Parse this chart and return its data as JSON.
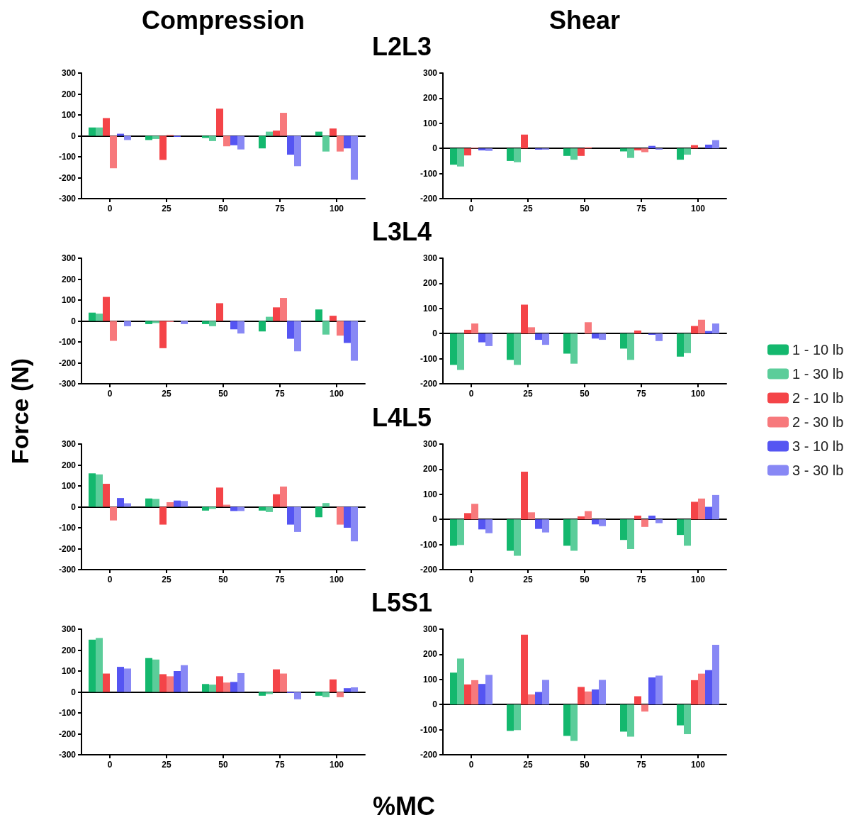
{
  "chart_data": [
    {
      "type": "bar",
      "title": "Compression",
      "subtitle": "L2L3",
      "categories": [
        "0",
        "25",
        "50",
        "75",
        "100"
      ],
      "ylim": [
        -300,
        300
      ],
      "yticks": [
        -300,
        -200,
        -100,
        0,
        100,
        200,
        300
      ],
      "series": [
        {
          "color": "#14b86e",
          "values": [
            40,
            -20,
            -10,
            -60,
            20
          ]
        },
        {
          "color": "#5bcd9a",
          "values": [
            40,
            -15,
            -25,
            20,
            -75
          ]
        },
        {
          "color": "#f44448",
          "values": [
            85,
            -115,
            130,
            25,
            35
          ]
        },
        {
          "color": "#f7797c",
          "values": [
            -155,
            5,
            -50,
            110,
            -75
          ]
        },
        {
          "color": "#5555f2",
          "values": [
            10,
            -5,
            -45,
            -90,
            -60
          ]
        },
        {
          "color": "#8888f5",
          "values": [
            -20,
            0,
            -65,
            -145,
            -210
          ]
        }
      ]
    },
    {
      "type": "bar",
      "title": "Shear",
      "categories": [
        "0",
        "25",
        "50",
        "75",
        "100"
      ],
      "ylim": [
        -200,
        300
      ],
      "yticks": [
        -200,
        -100,
        0,
        100,
        200,
        300
      ],
      "series": [
        {
          "color": "#14b86e",
          "values": [
            -65,
            -50,
            -30,
            -12,
            -45
          ]
        },
        {
          "color": "#5bcd9a",
          "values": [
            -72,
            -55,
            -45,
            -38,
            -25
          ]
        },
        {
          "color": "#f44448",
          "values": [
            -28,
            55,
            -30,
            -8,
            13
          ]
        },
        {
          "color": "#f7797c",
          "values": [
            3,
            0,
            5,
            -15,
            0
          ]
        },
        {
          "color": "#5555f2",
          "values": [
            -8,
            -5,
            0,
            10,
            15
          ]
        },
        {
          "color": "#8888f5",
          "values": [
            -10,
            -5,
            0,
            -5,
            33
          ]
        }
      ]
    },
    {
      "type": "bar",
      "subtitle": "L3L4",
      "ylabel": "Force (N)",
      "categories": [
        "0",
        "25",
        "50",
        "75",
        "100"
      ],
      "ylim": [
        -300,
        300
      ],
      "yticks": [
        -300,
        -200,
        -100,
        0,
        100,
        200,
        300
      ],
      "series": [
        {
          "color": "#14b86e",
          "values": [
            40,
            -15,
            -15,
            -50,
            55
          ]
        },
        {
          "color": "#5bcd9a",
          "values": [
            35,
            -10,
            -25,
            20,
            -65
          ]
        },
        {
          "color": "#f44448",
          "values": [
            115,
            -130,
            85,
            65,
            25
          ]
        },
        {
          "color": "#f7797c",
          "values": [
            -95,
            -5,
            0,
            110,
            -70
          ]
        },
        {
          "color": "#5555f2",
          "values": [
            0,
            0,
            -40,
            -85,
            -105
          ]
        },
        {
          "color": "#8888f5",
          "values": [
            -25,
            -15,
            -60,
            -145,
            -190
          ]
        }
      ]
    },
    {
      "type": "bar",
      "legend": "right",
      "categories": [
        "0",
        "25",
        "50",
        "75",
        "100"
      ],
      "ylim": [
        -200,
        300
      ],
      "yticks": [
        -200,
        -100,
        0,
        100,
        200,
        300
      ],
      "series": [
        {
          "name": "1 - 10 lb",
          "color": "#14b86e",
          "values": [
            -125,
            -105,
            -80,
            -60,
            -92
          ]
        },
        {
          "name": "1 - 30 lb",
          "color": "#5bcd9a",
          "values": [
            -145,
            -125,
            -120,
            -105,
            -78
          ]
        },
        {
          "name": "2 - 10 lb",
          "color": "#f44448",
          "values": [
            15,
            115,
            0,
            12,
            30
          ]
        },
        {
          "name": "2 - 30 lb",
          "color": "#f7797c",
          "values": [
            40,
            25,
            45,
            0,
            55
          ]
        },
        {
          "name": "3 - 10 lb",
          "color": "#5555f2",
          "values": [
            -35,
            -25,
            -20,
            -5,
            10
          ]
        },
        {
          "name": "3 - 30 lb",
          "color": "#8888f5",
          "values": [
            -50,
            -45,
            -25,
            -30,
            40
          ]
        }
      ]
    },
    {
      "type": "bar",
      "subtitle": "L4L5",
      "categories": [
        "0",
        "25",
        "50",
        "75",
        "100"
      ],
      "ylim": [
        -300,
        300
      ],
      "yticks": [
        -300,
        -200,
        -100,
        0,
        100,
        200,
        300
      ],
      "series": [
        {
          "color": "#14b86e",
          "values": [
            160,
            40,
            -18,
            -18,
            -50
          ]
        },
        {
          "color": "#5bcd9a",
          "values": [
            155,
            38,
            -10,
            -25,
            18
          ]
        },
        {
          "color": "#f44448",
          "values": [
            110,
            -85,
            92,
            60,
            0
          ]
        },
        {
          "color": "#f7797c",
          "values": [
            -65,
            22,
            10,
            97,
            -85
          ]
        },
        {
          "color": "#5555f2",
          "values": [
            42,
            30,
            -20,
            -85,
            -100
          ]
        },
        {
          "color": "#8888f5",
          "values": [
            17,
            28,
            -20,
            -120,
            -165
          ]
        }
      ]
    },
    {
      "type": "bar",
      "categories": [
        "0",
        "25",
        "50",
        "75",
        "100"
      ],
      "ylim": [
        -200,
        300
      ],
      "yticks": [
        -200,
        -100,
        0,
        100,
        200,
        300
      ],
      "series": [
        {
          "color": "#14b86e",
          "values": [
            -105,
            -125,
            -105,
            -82,
            -62
          ]
        },
        {
          "color": "#5bcd9a",
          "values": [
            -102,
            -145,
            -125,
            -118,
            -105
          ]
        },
        {
          "color": "#f44448",
          "values": [
            25,
            190,
            12,
            15,
            70
          ]
        },
        {
          "color": "#f7797c",
          "values": [
            62,
            28,
            33,
            -30,
            83
          ]
        },
        {
          "color": "#5555f2",
          "values": [
            -40,
            -38,
            -20,
            15,
            50
          ]
        },
        {
          "color": "#8888f5",
          "values": [
            -55,
            -52,
            -27,
            -15,
            97
          ]
        }
      ]
    },
    {
      "type": "bar",
      "subtitle": "L5S1",
      "xlabel": "%MC",
      "categories": [
        "0",
        "25",
        "50",
        "75",
        "100"
      ],
      "ylim": [
        -300,
        300
      ],
      "yticks": [
        -300,
        -200,
        -100,
        0,
        100,
        200,
        300
      ],
      "series": [
        {
          "color": "#14b86e",
          "values": [
            250,
            162,
            38,
            -18,
            -18
          ]
        },
        {
          "color": "#5bcd9a",
          "values": [
            258,
            155,
            35,
            -10,
            -25
          ]
        },
        {
          "color": "#f44448",
          "values": [
            88,
            85,
            75,
            108,
            60
          ]
        },
        {
          "color": "#f7797c",
          "values": [
            0,
            75,
            45,
            88,
            -25
          ]
        },
        {
          "color": "#5555f2",
          "values": [
            120,
            100,
            48,
            -5,
            18
          ]
        },
        {
          "color": "#8888f5",
          "values": [
            112,
            128,
            90,
            -35,
            22
          ]
        }
      ]
    },
    {
      "type": "bar",
      "categories": [
        "0",
        "25",
        "50",
        "75",
        "100"
      ],
      "ylim": [
        -200,
        300
      ],
      "yticks": [
        -200,
        -100,
        0,
        100,
        200,
        300
      ],
      "series": [
        {
          "color": "#14b86e",
          "values": [
            127,
            -105,
            -125,
            -108,
            -83
          ]
        },
        {
          "color": "#5bcd9a",
          "values": [
            183,
            -102,
            -145,
            -128,
            -118
          ]
        },
        {
          "color": "#f44448",
          "values": [
            80,
            278,
            70,
            33,
            97
          ]
        },
        {
          "color": "#f7797c",
          "values": [
            97,
            40,
            52,
            -28,
            123
          ]
        },
        {
          "color": "#5555f2",
          "values": [
            82,
            50,
            60,
            108,
            137
          ]
        },
        {
          "color": "#8888f5",
          "values": [
            118,
            98,
            98,
            115,
            238
          ]
        }
      ]
    }
  ]
}
